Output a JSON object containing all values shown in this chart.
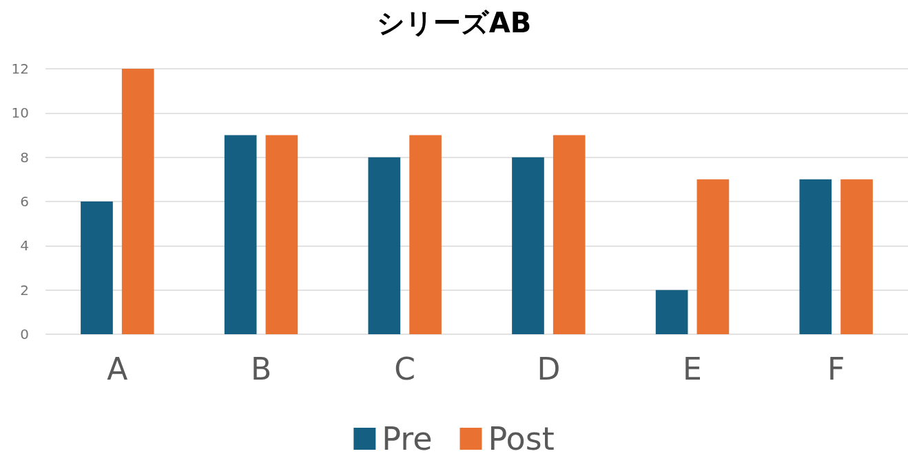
{
  "chart_data": {
    "type": "bar",
    "title": "シリーズAB",
    "categories": [
      "A",
      "B",
      "C",
      "D",
      "E",
      "F"
    ],
    "series": [
      {
        "name": "Pre",
        "color": "#156082",
        "values": [
          6,
          9,
          8,
          8,
          2,
          7
        ]
      },
      {
        "name": "Post",
        "color": "#e97132",
        "values": [
          12,
          9,
          9,
          9,
          7,
          7
        ]
      }
    ],
    "ylim": [
      0,
      12
    ],
    "yticks": [
      0,
      2,
      4,
      6,
      8,
      10,
      12
    ],
    "grid": "y",
    "legend": "bottom"
  }
}
